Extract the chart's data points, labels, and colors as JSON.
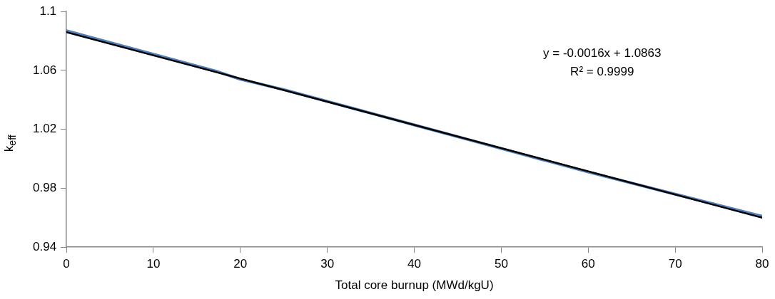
{
  "chart_data": {
    "type": "line",
    "xlabel": "Total core burnup (MWd/kgU)",
    "ylabel": "k$_{eff}$",
    "xlim": [
      0,
      80
    ],
    "xticks": [
      0,
      10,
      20,
      30,
      40,
      50,
      60,
      70,
      80
    ],
    "ylim": [
      0.94,
      1.1
    ],
    "yticks": [
      0.94,
      0.98,
      1.02,
      1.06,
      1.1
    ],
    "grid": false,
    "legend": false,
    "marker": "none",
    "line_style": "solid",
    "x": [
      0,
      2.5,
      5,
      7.5,
      10,
      12.5,
      15,
      17.5,
      20,
      25,
      30,
      40,
      50,
      60,
      70,
      80
    ],
    "series": [
      {
        "color": "#4f81bd",
        "values": [
          1.087,
          1.083,
          1.079,
          1.075,
          1.071,
          1.067,
          1.063,
          1.059,
          1.054,
          1.047,
          1.039,
          1.023,
          1.007,
          0.991,
          0.976,
          0.961
        ]
      },
      {
        "type": "line",
        "color": "#000000",
        "x": [
          0,
          80
        ],
        "values": [
          1.086,
          0.96
        ]
      }
    ],
    "annotations": [
      "y = -0.0016x + 1.0863",
      "R² = 0.9999"
    ]
  }
}
